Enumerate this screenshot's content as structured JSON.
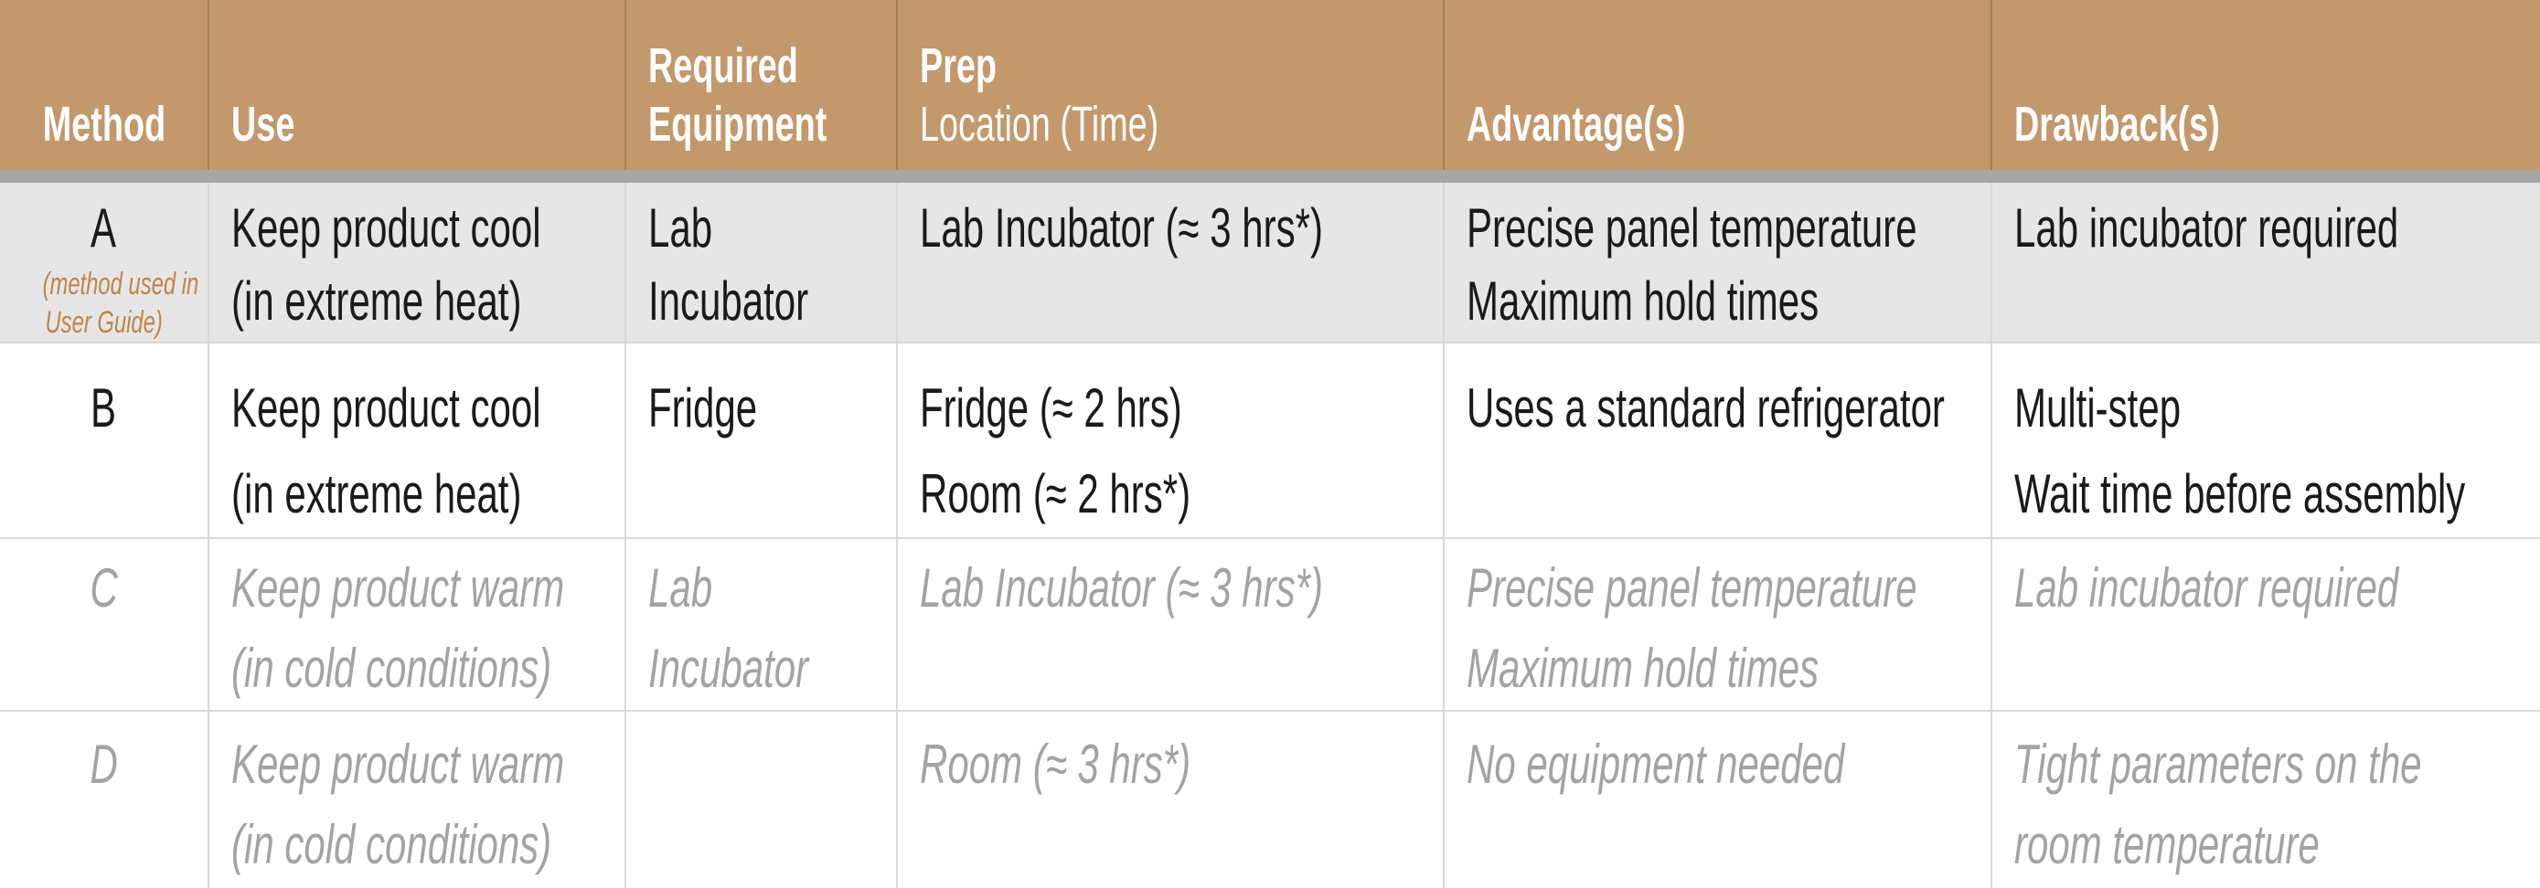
{
  "colors": {
    "header_bg": "#c3986a",
    "header_text": "#ffffff",
    "divider_bar": "#a6a6a6",
    "row_a_bg": "#e7e6e6",
    "body_text": "#1a1a1a",
    "muted_text": "#a3a3a3",
    "note_text": "#bf8548",
    "grid_line": "#d9d7d7"
  },
  "header": {
    "method": "Method",
    "use": "Use",
    "equipment_line1": "Required",
    "equipment_line2": "Equipment",
    "prep_line1": "Prep",
    "prep_line2": "Location (Time)",
    "advantages": "Advantage(s)",
    "drawbacks": "Drawback(s)"
  },
  "rows": [
    {
      "method": "A",
      "method_note": [
        "(method used in",
        "User Guide)"
      ],
      "use": [
        "Keep product cool",
        "(in extreme heat)"
      ],
      "equipment": [
        "Lab",
        "Incubator"
      ],
      "prep": [
        "Lab Incubator (≈ 3 hrs*)"
      ],
      "advantage": [
        "Precise panel temperature",
        "Maximum hold times"
      ],
      "drawback": [
        "Lab incubator required"
      ]
    },
    {
      "method": "B",
      "use": [
        "Keep product cool",
        "(in extreme heat)"
      ],
      "equipment": [
        "Fridge"
      ],
      "prep": [
        "Fridge (≈ 2 hrs)",
        "Room (≈ 2 hrs*)"
      ],
      "advantage": [
        "Uses a standard refrigerator"
      ],
      "drawback": [
        "Multi-step",
        "Wait time before assembly"
      ]
    },
    {
      "method": "C",
      "use": [
        "Keep product warm",
        "(in cold conditions)"
      ],
      "equipment": [
        "Lab",
        "Incubator"
      ],
      "prep": [
        "Lab Incubator (≈ 3 hrs*)"
      ],
      "advantage": [
        "Precise panel temperature",
        "Maximum hold times"
      ],
      "drawback": [
        "Lab incubator required"
      ]
    },
    {
      "method": "D",
      "use": [
        "Keep product warm",
        "(in cold conditions)"
      ],
      "equipment": [],
      "prep": [
        "Room (≈ 3 hrs*)"
      ],
      "advantage": [
        "No equipment needed"
      ],
      "drawback": [
        "Tight parameters on the",
        "room temperature"
      ]
    }
  ]
}
